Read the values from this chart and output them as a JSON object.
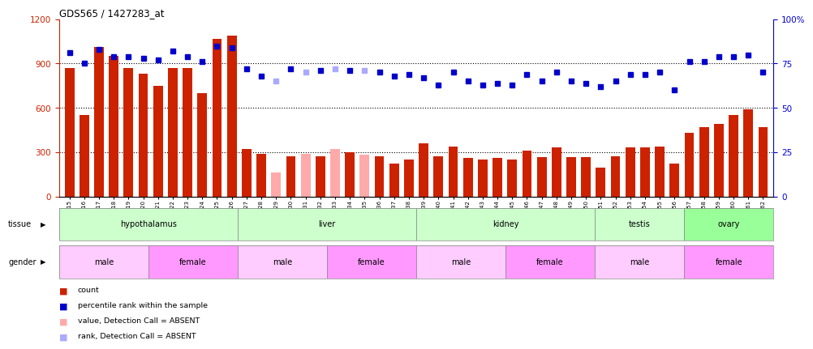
{
  "title": "GDS565 / 1427283_at",
  "samples": [
    "GSM19215",
    "GSM19216",
    "GSM19217",
    "GSM19218",
    "GSM19219",
    "GSM19220",
    "GSM19221",
    "GSM19222",
    "GSM19223",
    "GSM19224",
    "GSM19225",
    "GSM19226",
    "GSM19227",
    "GSM19228",
    "GSM19229",
    "GSM19230",
    "GSM19231",
    "GSM19232",
    "GSM19233",
    "GSM19234",
    "GSM19235",
    "GSM19236",
    "GSM19237",
    "GSM19238",
    "GSM19239",
    "GSM19240",
    "GSM19241",
    "GSM19242",
    "GSM19243",
    "GSM19244",
    "GSM19245",
    "GSM19246",
    "GSM19247",
    "GSM19248",
    "GSM19249",
    "GSM19250",
    "GSM19251",
    "GSM19252",
    "GSM19253",
    "GSM19254",
    "GSM19255",
    "GSM19256",
    "GSM19257",
    "GSM19258",
    "GSM19259",
    "GSM19260",
    "GSM19261",
    "GSM19262"
  ],
  "counts": [
    870,
    550,
    1010,
    950,
    870,
    830,
    750,
    870,
    870,
    700,
    1070,
    1090,
    320,
    290,
    160,
    270,
    290,
    270,
    320,
    300,
    280,
    270,
    220,
    250,
    360,
    270,
    340,
    260,
    250,
    260,
    250,
    310,
    265,
    330,
    265,
    265,
    195,
    270,
    330,
    330,
    340,
    220,
    430,
    470,
    490,
    550,
    590,
    470
  ],
  "absent_counts": [
    false,
    false,
    false,
    false,
    false,
    false,
    false,
    false,
    false,
    false,
    false,
    false,
    false,
    false,
    true,
    false,
    true,
    false,
    true,
    false,
    true,
    false,
    false,
    false,
    false,
    false,
    false,
    false,
    false,
    false,
    false,
    false,
    false,
    false,
    false,
    false,
    false,
    false,
    false,
    false,
    false,
    false,
    false,
    false,
    false,
    false,
    false,
    false
  ],
  "percentile_ranks": [
    81,
    75,
    83,
    79,
    79,
    78,
    77,
    82,
    79,
    76,
    85,
    84,
    72,
    68,
    65,
    72,
    70,
    71,
    72,
    71,
    71,
    70,
    68,
    69,
    67,
    63,
    70,
    65,
    63,
    64,
    63,
    69,
    65,
    70,
    65,
    64,
    62,
    65,
    69,
    69,
    70,
    60,
    76,
    76,
    79,
    79,
    80,
    70
  ],
  "absent_ranks": [
    false,
    false,
    false,
    false,
    false,
    false,
    false,
    false,
    false,
    false,
    false,
    false,
    false,
    false,
    true,
    false,
    true,
    false,
    true,
    false,
    true,
    false,
    false,
    false,
    false,
    false,
    false,
    false,
    false,
    false,
    false,
    false,
    false,
    false,
    false,
    false,
    false,
    false,
    false,
    false,
    false,
    false,
    false,
    false,
    false,
    false,
    false,
    false
  ],
  "tissues": [
    {
      "label": "hypothalamus",
      "start": 0,
      "end": 11,
      "color": "#ccffcc"
    },
    {
      "label": "liver",
      "start": 12,
      "end": 23,
      "color": "#ccffcc"
    },
    {
      "label": "kidney",
      "start": 24,
      "end": 35,
      "color": "#ccffcc"
    },
    {
      "label": "testis",
      "start": 36,
      "end": 41,
      "color": "#ccffcc"
    },
    {
      "label": "ovary",
      "start": 42,
      "end": 47,
      "color": "#99ff99"
    }
  ],
  "genders": [
    {
      "label": "male",
      "start": 0,
      "end": 5,
      "color": "#ffccff"
    },
    {
      "label": "female",
      "start": 6,
      "end": 11,
      "color": "#ff99ff"
    },
    {
      "label": "male",
      "start": 12,
      "end": 17,
      "color": "#ffccff"
    },
    {
      "label": "female",
      "start": 18,
      "end": 23,
      "color": "#ff99ff"
    },
    {
      "label": "male",
      "start": 24,
      "end": 29,
      "color": "#ffccff"
    },
    {
      "label": "female",
      "start": 30,
      "end": 35,
      "color": "#ff99ff"
    },
    {
      "label": "male",
      "start": 36,
      "end": 41,
      "color": "#ffccff"
    },
    {
      "label": "female",
      "start": 42,
      "end": 47,
      "color": "#ff99ff"
    }
  ],
  "bar_color_present": "#cc2200",
  "bar_color_absent": "#ffaaaa",
  "dot_color_present": "#0000cc",
  "dot_color_absent": "#aaaaff",
  "ylim_left": [
    0,
    1200
  ],
  "ylim_right": [
    0,
    100
  ],
  "yticks_left": [
    0,
    300,
    600,
    900,
    1200
  ],
  "yticks_right": [
    0,
    25,
    50,
    75,
    100
  ],
  "grid_values": [
    300,
    600,
    900
  ]
}
